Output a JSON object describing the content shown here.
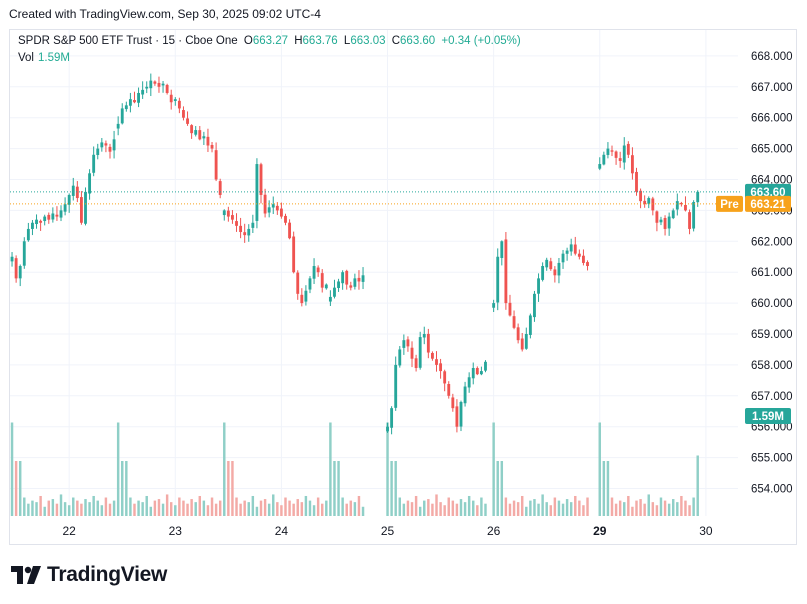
{
  "header": {
    "caption": "Created with TradingView.com, Sep 30, 2025 09:02 UTC-4"
  },
  "legend": {
    "symbol": "SPDR S&P 500 ETF Trust · 15 · Cboe One",
    "open_label": "O",
    "open": "663.27",
    "high_label": "H",
    "high": "663.76",
    "low_label": "L",
    "low": "663.03",
    "close_label": "C",
    "close": "663.60",
    "change": "+0.34 (+0.05%)",
    "vol_label": "Vol",
    "vol": "1.59M"
  },
  "price_tags": {
    "last": "663.60",
    "pre_label": "Pre",
    "pre": "663.21",
    "volume": "1.59M"
  },
  "brand": {
    "name": "TradingView"
  },
  "colors": {
    "up": "#26a69a",
    "down": "#ef5350",
    "up_vol": "#8fcfc7",
    "down_vol": "#f3aaa6",
    "last_line": "#26a69a",
    "pre_line": "#f7a21b",
    "grid": "#f0f3fa",
    "axis_text": "#131722"
  },
  "chart_data": {
    "type": "candlestick",
    "y_axis_ticks": [
      654,
      655,
      656,
      657,
      658,
      659,
      660,
      661,
      662,
      663,
      664,
      665,
      666,
      667,
      668
    ],
    "ylim": [
      653.2,
      668.4
    ],
    "x_axis_labels": [
      {
        "label": "22",
        "bar": 14
      },
      {
        "label": "23",
        "bar": 40
      },
      {
        "label": "24",
        "bar": 66
      },
      {
        "label": "25",
        "bar": 92
      },
      {
        "label": "26",
        "bar": 118
      },
      {
        "label": "29",
        "bar": 144
      },
      {
        "label": "30",
        "bar": 170
      }
    ],
    "last_price": 663.6,
    "pre_price": 663.21,
    "volume_label": "1.59M",
    "sessions": [
      {
        "label": "22",
        "start_bar": 0,
        "closes": [
          661.5,
          660.8,
          661.2,
          662.0,
          662.4,
          662.6,
          662.7,
          662.6,
          662.8,
          662.7,
          662.9,
          662.8,
          663.0,
          663.2,
          663.5,
          663.8,
          663.4,
          662.6,
          663.6,
          664.2,
          664.8,
          665.0,
          665.2,
          665.1,
          664.9,
          665.3
        ]
      },
      {
        "label": "23",
        "start_bar": 26,
        "closes": [
          665.8,
          666.3,
          666.4,
          666.6,
          666.5,
          666.8,
          666.9,
          667.0,
          667.2,
          667.1,
          667.0,
          667.1,
          666.8,
          666.5,
          666.6,
          666.3,
          666.0,
          665.8,
          665.5,
          665.6,
          665.3,
          665.4,
          665.1,
          665.0,
          664.0,
          663.5
        ]
      },
      {
        "label": "24",
        "start_bar": 52,
        "closes": [
          663.0,
          662.8,
          662.7,
          662.5,
          662.3,
          662.2,
          662.4,
          662.6,
          664.5,
          663.5,
          662.9,
          663.1,
          663.2,
          663.0,
          662.8,
          662.6,
          662.1,
          661.0,
          660.3,
          660.0,
          660.4,
          660.8,
          661.2,
          661.0,
          660.5,
          660.6
        ]
      },
      {
        "label": "24b",
        "start_bar": 78,
        "closes": [
          660.2,
          660.5,
          660.7,
          661.0,
          660.6,
          660.5,
          660.8,
          660.7,
          660.9
        ]
      },
      {
        "label": "25",
        "start_bar": 92,
        "closes": [
          656.0,
          656.6,
          658.0,
          658.5,
          658.8,
          658.6,
          658.2,
          657.9,
          658.9,
          659.0,
          658.4,
          658.2,
          658.0,
          657.8,
          657.4,
          657.0,
          656.6,
          656.0,
          656.8,
          657.3,
          657.6,
          657.9,
          657.7,
          657.8,
          658.1
        ]
      },
      {
        "label": "26",
        "start_bar": 118,
        "closes": [
          660.0,
          661.5,
          662.0,
          660.0,
          659.6,
          659.2,
          658.8,
          658.5,
          659.0,
          659.6,
          660.3,
          660.8,
          661.2,
          661.4,
          661.1,
          660.9,
          661.3,
          661.6,
          661.7,
          661.9,
          661.6,
          661.5,
          661.3,
          661.2
        ]
      },
      {
        "label": "29",
        "start_bar": 144,
        "closes": [
          664.5,
          664.8,
          665.0,
          664.9,
          664.7,
          664.6,
          665.1,
          664.8,
          664.2,
          663.6,
          663.3,
          663.2,
          663.4,
          663.0,
          662.6,
          662.7,
          662.4,
          662.8,
          663.0,
          663.3,
          663.2,
          663.0,
          662.4,
          663.27,
          663.6
        ]
      }
    ],
    "volume_pattern": [
      0.35,
      0.45,
      0.55,
      0.6,
      0.4,
      0.5,
      0.45,
      0.65,
      0.3,
      0.5,
      0.55,
      0.4,
      0.7,
      0.45,
      0.35,
      0.6,
      0.5,
      0.4,
      0.55,
      0.45,
      0.65,
      0.5,
      0.35,
      0.6,
      0.4,
      0.5
    ]
  }
}
